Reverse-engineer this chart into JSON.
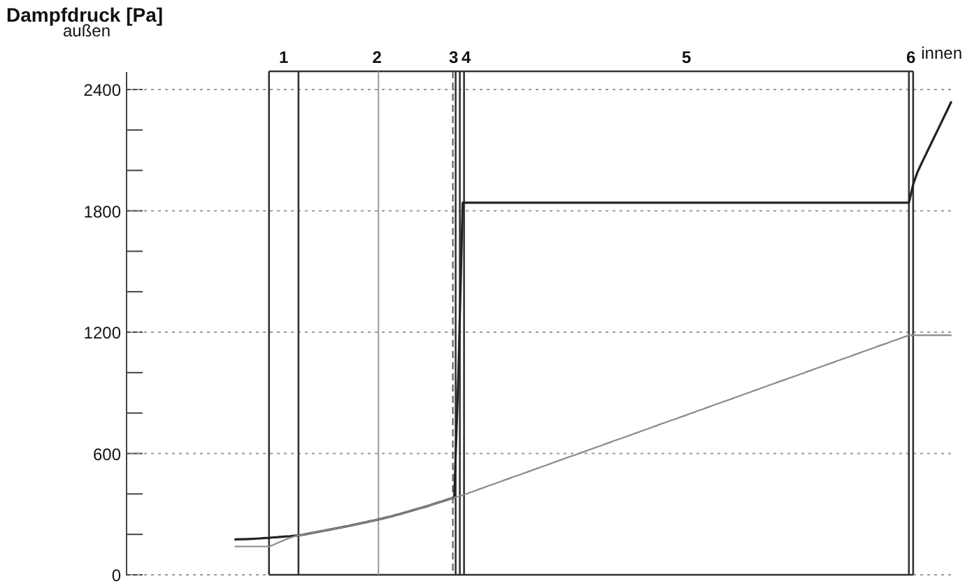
{
  "chart_data": {
    "type": "line",
    "ylabel": "Dampfdruck [Pa]",
    "annotations": [
      "außen",
      "innen",
      "1",
      "2",
      "3",
      "4",
      "5",
      "6"
    ],
    "categories": [
      null,
      null,
      null,
      null,
      null,
      null,
      null,
      null,
      null,
      null,
      null,
      null,
      null,
      null,
      null,
      null,
      null,
      null,
      null,
      null,
      null,
      null,
      null,
      null,
      null,
      null,
      null,
      null,
      null,
      null,
      null,
      null,
      null,
      null,
      null,
      null,
      null,
      null,
      null,
      null,
      null,
      null,
      null,
      null,
      null,
      null,
      null,
      null,
      null,
      null,
      null,
      null,
      null,
      null,
      null,
      null,
      null,
      null,
      null,
      null,
      null,
      null,
      null,
      null,
      null,
      null,
      null,
      null,
      null,
      null,
      null,
      null,
      null,
      null,
      null,
      null,
      null,
      null,
      null,
      null,
      null,
      null,
      null,
      null,
      null,
      null,
      null,
      null,
      null,
      null,
      null,
      null,
      null,
      null,
      null,
      null,
      null,
      null,
      null,
      null,
      null,
      null,
      null,
      null,
      null,
      null,
      null,
      null,
      null,
      null,
      null,
      null,
      null,
      null,
      null,
      null,
      null,
      null,
      null,
      null,
      null,
      null,
      null,
      null,
      null,
      null,
      null,
      null,
      null,
      null,
      null,
      null,
      null,
      null,
      null,
      null,
      null,
      null,
      null,
      null,
      null,
      null,
      null,
      null,
      null,
      null,
      null,
      null,
      null,
      null,
      null,
      null,
      null,
      null,
      null,
      null,
      null,
      null,
      null,
      null,
      null,
      null,
      null,
      null,
      null,
      null,
      null,
      null,
      null,
      null,
      null,
      null,
      null,
      null,
      null,
      null,
      null,
      null,
      null,
      null,
      null,
      null,
      null,
      null,
      null,
      null,
      null,
      null,
      null,
      null,
      null,
      null,
      null,
      null,
      null,
      null,
      null
    ],
    "ylim": [
      0,
      2490
    ],
    "yticks": [
      0,
      {
        "value": 200,
        "label": null
      },
      {
        "value": 400,
        "label": null
      },
      600,
      {
        "value": 800,
        "label": null
      },
      {
        "value": 1000,
        "label": null
      },
      1200,
      {
        "value": 1400,
        "label": null
      },
      {
        "value": 1600,
        "label": null
      },
      1800,
      {
        "value": 2000,
        "label": null
      },
      {
        "value": 2200,
        "label": null
      },
      2400
    ],
    "tick_labels": "y",
    "grid": "y",
    "series": [
      {
        "color": "#222222",
        "values": [
          null,
          null,
          null,
          null,
          null,
          null,
          null,
          null,
          null,
          null,
          null,
          null,
          null,
          null,
          null,
          null,
          null,
          null,
          null,
          null,
          null,
          null,
          null,
          null,
          null,
          null,
          175,
          176,
          176,
          177,
          178,
          179,
          180,
          182,
          183,
          185,
          186,
          188,
          190,
          191,
          193,
          195,
          198,
          202,
          206,
          210,
          214,
          218,
          222,
          226,
          230,
          234,
          238,
          242,
          247,
          251,
          256,
          260,
          265,
          269,
          274,
          279,
          284,
          289,
          295,
          300,
          306,
          312,
          318,
          324,
          330,
          336,
          342,
          349,
          356,
          362,
          369,
          376,
          382,
          1000,
          1840,
          1840,
          1840,
          1840,
          1840,
          1840,
          1840,
          1840,
          1840,
          1840,
          1840,
          1840,
          1840,
          1840,
          1840,
          1840,
          1840,
          1840,
          1840,
          1840,
          1840,
          1840,
          1840,
          1840,
          1840,
          1840,
          1840,
          1840,
          1840,
          1840,
          1840,
          1840,
          1840,
          1840,
          1840,
          1840,
          1840,
          1840,
          1840,
          1840,
          1840,
          1840,
          1840,
          1840,
          1840,
          1840,
          1840,
          1840,
          1840,
          1840,
          1840,
          1840,
          1840,
          1840,
          1840,
          1840,
          1840,
          1840,
          1840,
          1840,
          1840,
          1840,
          1840,
          1840,
          1840,
          1840,
          1840,
          1840,
          1840,
          1840,
          1840,
          1840,
          1840,
          1840,
          1840,
          1840,
          1840,
          1840,
          1840,
          1840,
          1840,
          1840,
          1840,
          1840,
          1840,
          1840,
          1840,
          1840,
          1840,
          1840,
          1840,
          1840,
          1840,
          1840,
          1840,
          1840,
          1840,
          1840,
          1840,
          1840,
          1840,
          1840,
          1840,
          1840,
          1840,
          1840,
          1840,
          1930,
          1990,
          2035,
          2078,
          2121,
          2164,
          2207,
          2250,
          2293,
          2337
        ]
      },
      {
        "color": "#8a8a8a",
        "values": [
          null,
          null,
          null,
          null,
          null,
          null,
          null,
          null,
          null,
          null,
          null,
          null,
          null,
          null,
          null,
          null,
          null,
          null,
          null,
          null,
          null,
          null,
          null,
          null,
          null,
          null,
          140,
          140,
          140,
          140,
          140,
          140,
          140,
          140,
          140,
          148,
          157,
          166,
          175,
          183,
          190,
          195,
          198,
          202,
          206,
          210,
          214,
          218,
          222,
          226,
          230,
          234,
          238,
          242,
          247,
          251,
          256,
          260,
          265,
          269,
          274,
          279,
          284,
          289,
          295,
          300,
          306,
          312,
          318,
          324,
          330,
          336,
          342,
          349,
          356,
          362,
          369,
          376,
          382,
          388,
          394,
          401,
          409,
          416,
          424,
          431,
          439,
          446,
          454,
          461,
          469,
          476,
          484,
          491,
          498,
          506,
          513,
          521,
          528,
          536,
          543,
          551,
          558,
          566,
          573,
          581,
          588,
          595,
          603,
          610,
          618,
          625,
          633,
          640,
          648,
          655,
          663,
          670,
          677,
          685,
          692,
          700,
          707,
          715,
          722,
          730,
          737,
          745,
          752,
          760,
          767,
          774,
          782,
          789,
          797,
          804,
          812,
          819,
          827,
          834,
          842,
          849,
          857,
          864,
          871,
          879,
          886,
          894,
          901,
          909,
          916,
          924,
          931,
          939,
          946,
          954,
          961,
          968,
          976,
          983,
          991,
          998,
          1006,
          1013,
          1021,
          1028,
          1036,
          1043,
          1050,
          1058,
          1065,
          1073,
          1080,
          1088,
          1095,
          1103,
          1110,
          1118,
          1125,
          1133,
          1140,
          1147,
          1155,
          1162,
          1170,
          1177,
          1185,
          1185,
          1185,
          1185,
          1185,
          1185,
          1185,
          1185,
          1185,
          1185,
          1185
        ]
      }
    ],
    "line_style": "solid"
  }
}
